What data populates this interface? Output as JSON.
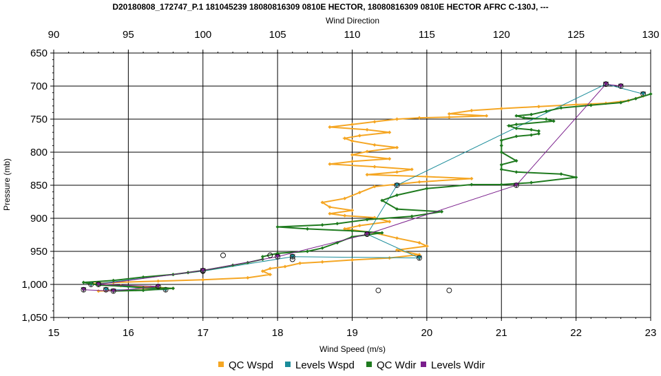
{
  "chart_data": {
    "type": "line",
    "title": "D20180808_172747_P.1 181045239 18080816309 0810E HECTOR, 18080816309 0810E HECTOR AFRC C-130J, ---",
    "top_axis": {
      "label": "Wind Direction",
      "min": 90,
      "max": 130,
      "ticks": [
        90,
        95,
        100,
        105,
        110,
        115,
        120,
        125,
        130
      ]
    },
    "bottom_axis": {
      "label": "Wind Speed (m/s)",
      "min": 15,
      "max": 23,
      "ticks": [
        15,
        16,
        17,
        18,
        19,
        20,
        21,
        22,
        23
      ]
    },
    "left_axis": {
      "label": "Pressure (mb)",
      "min": 650,
      "max": 1050,
      "inverted": true,
      "ticks": [
        650,
        700,
        750,
        800,
        850,
        900,
        950,
        1000,
        1050
      ],
      "tick_labels": [
        "650",
        "700",
        "750",
        "800",
        "850",
        "900",
        "950",
        "1,000",
        "1,050"
      ]
    },
    "grid": true,
    "legend_position": "bottom",
    "series": [
      {
        "name": "QC Wspd",
        "color": "#F5A623",
        "axis": "bottom",
        "marker": "diamond",
        "points": [
          [
            22.9,
            715
          ],
          [
            22.7,
            722
          ],
          [
            22.4,
            726
          ],
          [
            22.0,
            728
          ],
          [
            21.5,
            731
          ],
          [
            21.0,
            734
          ],
          [
            20.6,
            737
          ],
          [
            20.3,
            742
          ],
          [
            20.8,
            745
          ],
          [
            20.3,
            747
          ],
          [
            19.9,
            748
          ],
          [
            19.6,
            750
          ],
          [
            19.3,
            754
          ],
          [
            19.0,
            758
          ],
          [
            18.7,
            762
          ],
          [
            19.2,
            766
          ],
          [
            19.5,
            770
          ],
          [
            19.1,
            775
          ],
          [
            18.9,
            779
          ],
          [
            19.0,
            783
          ],
          [
            19.3,
            789
          ],
          [
            19.6,
            793
          ],
          [
            19.2,
            799
          ],
          [
            19.0,
            804
          ],
          [
            19.5,
            810
          ],
          [
            19.0,
            814
          ],
          [
            18.7,
            818
          ],
          [
            19.3,
            822
          ],
          [
            19.8,
            826
          ],
          [
            19.6,
            830
          ],
          [
            19.2,
            834
          ],
          [
            20.0,
            837
          ],
          [
            20.6,
            840
          ],
          [
            19.9,
            845
          ],
          [
            19.3,
            852
          ],
          [
            19.1,
            861
          ],
          [
            18.9,
            870
          ],
          [
            18.6,
            876
          ],
          [
            18.7,
            883
          ],
          [
            19.0,
            888
          ],
          [
            18.7,
            893
          ],
          [
            18.9,
            896
          ],
          [
            19.3,
            899
          ],
          [
            19.5,
            905
          ],
          [
            19.1,
            911
          ],
          [
            18.9,
            916
          ],
          [
            19.3,
            922
          ],
          [
            19.6,
            930
          ],
          [
            19.9,
            937
          ],
          [
            20.0,
            942
          ],
          [
            19.6,
            948
          ],
          [
            19.9,
            955
          ],
          [
            19.5,
            960
          ],
          [
            19.0,
            963
          ],
          [
            18.6,
            966
          ],
          [
            18.3,
            968
          ],
          [
            18.1,
            973
          ],
          [
            17.9,
            976
          ],
          [
            17.8,
            980
          ],
          [
            17.9,
            985
          ],
          [
            17.6,
            990
          ],
          [
            17.0,
            993
          ],
          [
            16.4,
            995
          ],
          [
            15.8,
            997
          ],
          [
            15.5,
            999
          ],
          [
            15.9,
            1002
          ],
          [
            16.3,
            1004
          ],
          [
            16.6,
            1006
          ],
          [
            16.1,
            1008
          ],
          [
            15.6,
            1010
          ]
        ]
      },
      {
        "name": "Levels Wspd",
        "color": "#1A8C9A",
        "axis": "bottom",
        "marker": "triangle",
        "points": [
          [
            22.9,
            712
          ],
          [
            22.4,
            697
          ],
          [
            19.6,
            850
          ],
          [
            19.2,
            924
          ],
          [
            19.9,
            960
          ],
          [
            18.2,
            958
          ],
          [
            17.0,
            980
          ],
          [
            15.5,
            1000
          ],
          [
            16.5,
            1008
          ],
          [
            15.7,
            1008
          ]
        ]
      },
      {
        "name": "QC Wdir",
        "color": "#1E7A1E",
        "axis": "top",
        "marker": "diamond",
        "points": [
          [
            130,
            712
          ],
          [
            129,
            719
          ],
          [
            128,
            725
          ],
          [
            126,
            729
          ],
          [
            124,
            733
          ],
          [
            123,
            738
          ],
          [
            122,
            743
          ],
          [
            121,
            745
          ],
          [
            121.5,
            748
          ],
          [
            123,
            750
          ],
          [
            123.5,
            753
          ],
          [
            121,
            758
          ],
          [
            120.5,
            760
          ],
          [
            121,
            764
          ],
          [
            122,
            766
          ],
          [
            122.5,
            768
          ],
          [
            122.5,
            772
          ],
          [
            122,
            774
          ],
          [
            121,
            776
          ],
          [
            120,
            782
          ],
          [
            120,
            790
          ],
          [
            120,
            800
          ],
          [
            121,
            813
          ],
          [
            120,
            819
          ],
          [
            120,
            826
          ],
          [
            121,
            830
          ],
          [
            124,
            833
          ],
          [
            125,
            838
          ],
          [
            122,
            846
          ],
          [
            120,
            849
          ],
          [
            118,
            849
          ],
          [
            115,
            855
          ],
          [
            113,
            865
          ],
          [
            112,
            873
          ],
          [
            113,
            886
          ],
          [
            116,
            890
          ],
          [
            114,
            897
          ],
          [
            111,
            902
          ],
          [
            109,
            908
          ],
          [
            108,
            910
          ],
          [
            105,
            913
          ],
          [
            107,
            916
          ],
          [
            110,
            919
          ],
          [
            112,
            922
          ],
          [
            110,
            928
          ],
          [
            109,
            937
          ],
          [
            108,
            945
          ],
          [
            107,
            950
          ],
          [
            105,
            953
          ],
          [
            104,
            958
          ],
          [
            104,
            962
          ],
          [
            103,
            967
          ],
          [
            102,
            971
          ],
          [
            100,
            979
          ],
          [
            99,
            982
          ],
          [
            98,
            985
          ],
          [
            96,
            989
          ],
          [
            94,
            994
          ],
          [
            92,
            997
          ],
          [
            93,
            1001
          ],
          [
            95,
            1003
          ],
          [
            96,
            1005
          ],
          [
            98,
            1006
          ],
          [
            96,
            1009
          ],
          [
            94,
            1010
          ]
        ]
      },
      {
        "name": "Levels Wdir",
        "color": "#7A1E8C",
        "axis": "top",
        "marker": "triangle",
        "points": [
          [
            128,
            700
          ],
          [
            127,
            697
          ],
          [
            121,
            850
          ],
          [
            111,
            924
          ],
          [
            105,
            958
          ],
          [
            100,
            979
          ],
          [
            93,
            1000
          ],
          [
            97,
            1003
          ],
          [
            94,
            1010
          ],
          [
            92,
            1008
          ]
        ]
      }
    ],
    "scatter_points": [
      [
        17.27,
        956
      ],
      [
        17.9,
        956
      ],
      [
        18.2,
        962
      ],
      [
        19.35,
        1009
      ],
      [
        20.3,
        1009
      ]
    ]
  }
}
